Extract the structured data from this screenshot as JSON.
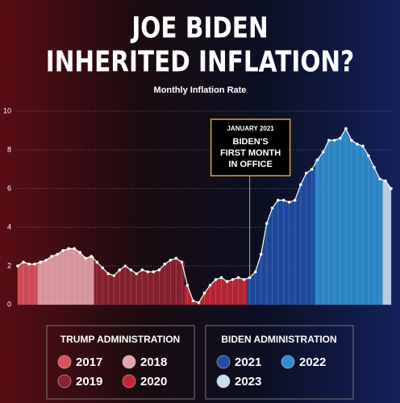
{
  "chart_data": {
    "type": "area",
    "title": [
      "JOE BIDEN",
      "INHERITED INFLATION?"
    ],
    "subtitle": "Monthly Inflation Rate",
    "ylim": [
      0,
      10
    ],
    "yticks": [
      0,
      2,
      4,
      6,
      8,
      10
    ],
    "grid": true,
    "annotation": {
      "date": "JANUARY 2021",
      "text": [
        "BIDEN'S",
        "FIRST MONTH",
        "IN OFFICE"
      ]
    },
    "groups": [
      {
        "title": "TRUMP ADMINISTRATION",
        "series": [
          {
            "name": "2017",
            "color": "#d9505e",
            "values": [
              2.0,
              2.2,
              2.1,
              2.1
            ]
          },
          {
            "name": "2018",
            "color": "#e7a3ac",
            "values": [
              2.2,
              2.3,
              2.5,
              2.6,
              2.8,
              2.9,
              2.9,
              2.7,
              2.4,
              2.5
            ]
          },
          {
            "name": "2019",
            "color": "#8e2232",
            "values": [
              2.2,
              1.9,
              1.6,
              1.5,
              1.8,
              2.0,
              1.8,
              1.6,
              1.8,
              1.7,
              1.7,
              1.8,
              2.1,
              2.3,
              2.4,
              2.2
            ]
          },
          {
            "name": "2020",
            "color": "#c52636",
            "values": [
              1.0,
              0.2,
              0.1,
              0.6,
              1.0,
              1.3,
              1.4,
              1.2,
              1.3,
              1.4,
              1.3
            ]
          }
        ]
      },
      {
        "title": "BIDEN ADMINISTRATION",
        "series": [
          {
            "name": "2021",
            "color": "#1f4fa8",
            "values": [
              1.4,
              1.7,
              2.6,
              4.2,
              5.0,
              5.4,
              5.4,
              5.3,
              5.4,
              6.2,
              6.8,
              7.0
            ]
          },
          {
            "name": "2022",
            "color": "#2e8fd0",
            "values": [
              7.5,
              7.9,
              8.5,
              8.5,
              8.6,
              9.1,
              8.5,
              8.3,
              8.2,
              7.7,
              7.1,
              6.5
            ]
          },
          {
            "name": "2023",
            "color": "#c9def0",
            "values": [
              6.4,
              6.0
            ]
          }
        ]
      }
    ]
  }
}
